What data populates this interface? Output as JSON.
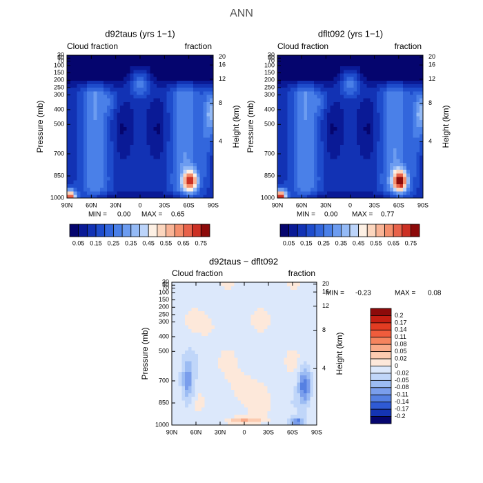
{
  "title": "ANN",
  "chart_data": [
    {
      "type": "contour",
      "title": "d92taus (yrs 1−1)",
      "left_label": "Cloud fraction",
      "right_label": "fraction",
      "ylabel": "Pressure (mb)",
      "y2label": "Height (km)",
      "xlim": [
        90,
        -90
      ],
      "xticks": [
        {
          "value": 90,
          "label": "90N"
        },
        {
          "value": 60,
          "label": "60N"
        },
        {
          "value": 30,
          "label": "30N"
        },
        0,
        {
          "value": -30,
          "label": "30S"
        },
        {
          "value": -60,
          "label": "60S"
        },
        {
          "value": -90,
          "label": "90S"
        }
      ],
      "ylim": [
        1000,
        30
      ],
      "yticks": [
        1000,
        850,
        700,
        500,
        400,
        300,
        250,
        200,
        150,
        100,
        70,
        50,
        30
      ],
      "y2ticks": [
        4,
        8,
        12,
        16,
        20
      ],
      "min_label": "MIN =",
      "min": {
        "value": 0,
        "label": "0.00"
      },
      "max_label": "MAX =",
      "max": 0.65,
      "colorbar": {
        "orientation": "horizontal",
        "clim": [
          0,
          0.8
        ],
        "ticks": [
          0.05,
          0.15,
          0.25,
          0.35,
          0.45,
          0.55,
          0.65,
          0.75
        ],
        "colors": [
          "#05056e",
          "#0a1a96",
          "#1232b4",
          "#1e4ccc",
          "#3266dc",
          "#4a80e8",
          "#6c9cf0",
          "#94baf6",
          "#bcd4fa",
          "#fdf0e4",
          "#fcd6be",
          "#f9b496",
          "#f48e6c",
          "#e8624a",
          "#cc3024",
          "#8c0a0a"
        ]
      }
    },
    {
      "type": "contour",
      "title": "dflt092 (yrs 1−1)",
      "left_label": "Cloud fraction",
      "right_label": "fraction",
      "ylabel": "Pressure (mb)",
      "y2label": "Height (km)",
      "xlim": [
        90,
        -90
      ],
      "xticks": [
        {
          "value": 90,
          "label": "90N"
        },
        {
          "value": 60,
          "label": "60N"
        },
        {
          "value": 30,
          "label": "30N"
        },
        0,
        {
          "value": -30,
          "label": "30S"
        },
        {
          "value": -60,
          "label": "60S"
        },
        {
          "value": -90,
          "label": "90S"
        }
      ],
      "ylim": [
        1000,
        30
      ],
      "yticks": [
        1000,
        850,
        700,
        500,
        400,
        300,
        250,
        200,
        150,
        100,
        70,
        50,
        30
      ],
      "y2ticks": [
        4,
        8,
        12,
        16,
        20
      ],
      "min_label": "MIN =",
      "min": {
        "value": 0,
        "label": "0.00"
      },
      "max_label": "MAX =",
      "max": 0.77,
      "colorbar": {
        "orientation": "horizontal",
        "clim": [
          0,
          0.8
        ],
        "ticks": [
          0.05,
          0.15,
          0.25,
          0.35,
          0.45,
          0.55,
          0.65,
          0.75
        ],
        "colors": [
          "#05056e",
          "#0a1a96",
          "#1232b4",
          "#1e4ccc",
          "#3266dc",
          "#4a80e8",
          "#6c9cf0",
          "#94baf6",
          "#bcd4fa",
          "#fdf0e4",
          "#fcd6be",
          "#f9b496",
          "#f48e6c",
          "#e8624a",
          "#cc3024",
          "#8c0a0a"
        ]
      }
    },
    {
      "type": "contour",
      "title": "d92taus − dflt092",
      "left_label": "Cloud fraction",
      "right_label": "fraction",
      "ylabel": "Pressure (mb)",
      "y2label": "Height (km)",
      "xlim": [
        90,
        -90
      ],
      "xticks": [
        {
          "value": 90,
          "label": "90N"
        },
        {
          "value": 60,
          "label": "60N"
        },
        {
          "value": 30,
          "label": "30N"
        },
        0,
        {
          "value": -30,
          "label": "30S"
        },
        {
          "value": -60,
          "label": "60S"
        },
        {
          "value": -90,
          "label": "90S"
        }
      ],
      "ylim": [
        1000,
        30
      ],
      "yticks": [
        1000,
        850,
        700,
        500,
        400,
        300,
        250,
        200,
        150,
        100,
        70,
        50,
        30
      ],
      "y2ticks": [
        4,
        8,
        12,
        16,
        20
      ],
      "min_label": "MIN =",
      "min": -0.23,
      "max_label": "MAX =",
      "max": 0.08,
      "colorbar": {
        "orientation": "vertical",
        "ticks": [
          0.2,
          0.17,
          0.14,
          0.11,
          0.08,
          0.05,
          0.02,
          0,
          -0.02,
          -0.05,
          -0.08,
          -0.11,
          -0.14,
          -0.17,
          -0.2
        ],
        "colors": [
          "#8c0a0a",
          "#c41e12",
          "#e23c22",
          "#f05c3c",
          "#f5845e",
          "#f9aa88",
          "#fccbb0",
          "#fde8da",
          "#dce8fb",
          "#c0d6f9",
          "#9cbcf3",
          "#7a9eec",
          "#5580e2",
          "#2f5ad4",
          "#1434b4",
          "#05056e"
        ]
      }
    }
  ]
}
